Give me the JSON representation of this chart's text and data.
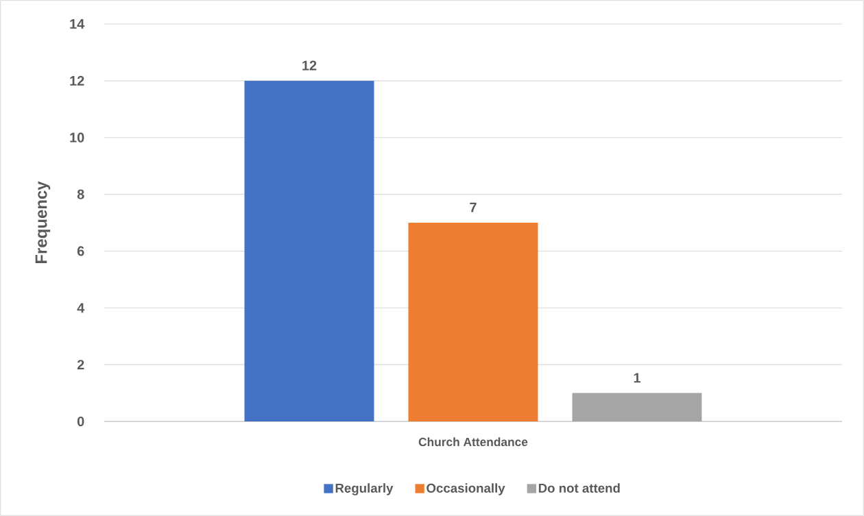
{
  "chart_data": {
    "type": "bar",
    "categories": [
      "Church Attendance"
    ],
    "series": [
      {
        "name": "Regularly",
        "color": "#4472c4",
        "values": [
          12
        ]
      },
      {
        "name": "Occasionally",
        "color": "#ed7d31",
        "values": [
          7
        ]
      },
      {
        "name": "Do not attend",
        "color": "#a5a5a5",
        "values": [
          1
        ]
      }
    ],
    "ylabel": "Frequency",
    "ylim": [
      0,
      14
    ],
    "yticks": [
      0,
      2,
      4,
      6,
      8,
      10,
      12,
      14
    ],
    "grid": "y",
    "legend": "bottom",
    "data_labels": true
  }
}
